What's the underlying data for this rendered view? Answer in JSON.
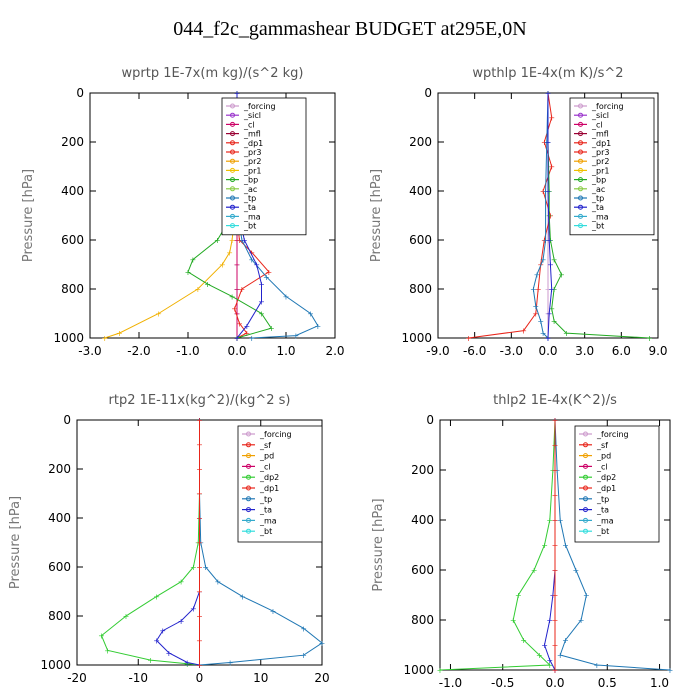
{
  "figure_title": "044_f2c_gammashear  BUDGET at295E,0N",
  "chart_data": [
    {
      "type": "line",
      "title": "wprtp  1E-7x(m kg)/(s^2 kg)",
      "ylabel": "Pressure [hPa]",
      "xlim": [
        -3.0,
        2.0
      ],
      "ylim": [
        1000,
        0
      ],
      "xticks": [
        "-3.0",
        "-2.0",
        "-1.0",
        "0.0",
        "1.0",
        "2.0"
      ],
      "yticks": [
        "0",
        "200",
        "400",
        "600",
        "800",
        "1000"
      ],
      "legend": [
        "_forcing",
        "_sicl",
        "_cl",
        "_mfl",
        "_dp1",
        "_pr3",
        "_pr2",
        "_pr1",
        "_bp",
        "_ac",
        "_tp",
        "_ta",
        "_ma",
        "_bt"
      ],
      "series": [
        {
          "name": "_forcing",
          "color": "#000000",
          "x": [
            0,
            0,
            0,
            0,
            0,
            0,
            0,
            0,
            0,
            0,
            0
          ],
          "y": [
            0,
            100,
            200,
            300,
            400,
            500,
            600,
            700,
            800,
            900,
            1000
          ]
        },
        {
          "name": "_cl",
          "color": "#cc0066",
          "x": [
            0,
            0,
            0,
            0,
            0,
            0,
            0,
            0,
            0,
            0,
            0
          ],
          "y": [
            0,
            100,
            200,
            300,
            400,
            500,
            600,
            700,
            800,
            900,
            1000
          ]
        },
        {
          "name": "_dp1",
          "color": "#e8251a",
          "x": [
            0,
            0,
            0,
            0,
            0,
            0,
            0.05,
            0.3,
            0.65,
            0.1,
            -0.05,
            0.05,
            0.2,
            0
          ],
          "y": [
            0,
            100,
            200,
            300,
            400,
            500,
            600,
            650,
            730,
            800,
            880,
            940,
            980,
            1000
          ]
        },
        {
          "name": "_pr1",
          "color": "#f0b000",
          "x": [
            0,
            0,
            0,
            -0.05,
            -0.1,
            -0.15,
            -0.3,
            -0.8,
            -1.6,
            -2.4,
            -2.7
          ],
          "y": [
            0,
            200,
            400,
            500,
            600,
            650,
            700,
            800,
            900,
            980,
            1000
          ]
        },
        {
          "name": "_bp",
          "color": "#22aa22",
          "x": [
            0,
            0,
            0,
            -0.1,
            -0.4,
            -0.9,
            -1.0,
            -0.6,
            -0.1,
            0.5,
            0.7,
            0
          ],
          "y": [
            0,
            200,
            400,
            500,
            600,
            680,
            730,
            780,
            830,
            900,
            960,
            1000
          ]
        },
        {
          "name": "_tp",
          "color": "#1f77b4",
          "x": [
            0,
            0,
            0,
            0.02,
            0.1,
            0.3,
            0.6,
            1.0,
            1.5,
            1.65,
            1.2,
            0.3
          ],
          "y": [
            0,
            200,
            400,
            500,
            600,
            680,
            750,
            830,
            900,
            950,
            990,
            1000
          ]
        },
        {
          "name": "_ta",
          "color": "#2222cc",
          "x": [
            0,
            0,
            0,
            0.05,
            0.15,
            0.4,
            0.5,
            0.5,
            0.2,
            0
          ],
          "y": [
            0,
            200,
            400,
            500,
            600,
            700,
            780,
            850,
            950,
            1000
          ]
        }
      ]
    },
    {
      "type": "line",
      "title": "wpthlp  1E-4x(m K)/s^2",
      "ylabel": "Pressure [hPa]",
      "xlim": [
        -9.0,
        9.0
      ],
      "ylim": [
        1000,
        0
      ],
      "xticks": [
        "-9.0",
        "-6.0",
        "-3.0",
        "0.0",
        "3.0",
        "6.0",
        "9.0"
      ],
      "yticks": [
        "0",
        "200",
        "400",
        "600",
        "800",
        "1000"
      ],
      "legend": [
        "_forcing",
        "_sicl",
        "_cl",
        "_mfl",
        "_dp1",
        "_pr3",
        "_pr2",
        "_pr1",
        "_bp",
        "_ac",
        "_tp",
        "_ta",
        "_ma",
        "_bt"
      ],
      "series": [
        {
          "name": "_forcing",
          "color": "#cc99cc",
          "x": [
            0,
            0,
            0,
            0,
            0,
            0,
            0
          ],
          "y": [
            0,
            200,
            400,
            600,
            800,
            900,
            1000
          ]
        },
        {
          "name": "_dp1",
          "color": "#e8251a",
          "x": [
            0,
            0.3,
            -0.3,
            0.3,
            -0.4,
            0.2,
            -0.3,
            -0.6,
            -0.8,
            -1.0,
            -2.0,
            -6.5
          ],
          "y": [
            0,
            100,
            200,
            300,
            400,
            500,
            600,
            700,
            800,
            900,
            970,
            1000
          ]
        },
        {
          "name": "_bp",
          "color": "#22aa22",
          "x": [
            0,
            0,
            0.1,
            0.1,
            0.2,
            0.5,
            1.1,
            0.5,
            0.3,
            0.5,
            1.5,
            8.3
          ],
          "y": [
            0,
            200,
            400,
            500,
            600,
            680,
            740,
            800,
            880,
            930,
            980,
            1000
          ]
        },
        {
          "name": "_tp",
          "color": "#1f77b4",
          "x": [
            0,
            -0.1,
            -0.2,
            -0.2,
            -0.4,
            -0.9,
            -1.2,
            -1.0,
            -0.6,
            -0.4,
            0
          ],
          "y": [
            0,
            200,
            400,
            600,
            680,
            740,
            800,
            870,
            930,
            980,
            1000
          ]
        },
        {
          "name": "_ta",
          "color": "#2222cc",
          "x": [
            0,
            0,
            0,
            0.1,
            0.2,
            0.3,
            0.1,
            0
          ],
          "y": [
            0,
            200,
            400,
            600,
            700,
            800,
            900,
            1000
          ]
        }
      ]
    },
    {
      "type": "line",
      "title": "rtp2  1E-11x(kg^2)/(kg^2 s)",
      "ylabel": "Pressure [hPa]",
      "xlim": [
        -20,
        20
      ],
      "ylim": [
        1000,
        0
      ],
      "xticks": [
        "-20",
        "-10",
        "0",
        "10",
        "20"
      ],
      "yticks": [
        "0",
        "200",
        "400",
        "600",
        "800",
        "1000"
      ],
      "legend": [
        "_forcing",
        "_sf",
        "_pd",
        "_cl",
        "_dp2",
        "_dp1",
        "_tp",
        "_ta",
        "_ma",
        "_bt"
      ],
      "series": [
        {
          "name": "_dp1",
          "color": "#33cc33",
          "x": [
            0,
            0,
            -0.2,
            -1.0,
            -3.0,
            -7.0,
            -12.0,
            -16.0,
            -15.0,
            -8.0,
            -2.0,
            0
          ],
          "y": [
            0,
            300,
            500,
            600,
            660,
            720,
            800,
            880,
            940,
            980,
            995,
            1000
          ]
        },
        {
          "name": "_tp",
          "color": "#1f77b4",
          "x": [
            0,
            0,
            0.2,
            1.0,
            3.0,
            7.0,
            12.0,
            17.0,
            20.0,
            17.0,
            5.0,
            0
          ],
          "y": [
            0,
            300,
            500,
            600,
            660,
            720,
            780,
            850,
            910,
            960,
            990,
            1000
          ]
        },
        {
          "name": "_ta",
          "color": "#2222cc",
          "x": [
            0,
            0,
            0,
            -1.0,
            -3.0,
            -6.0,
            -7.0,
            -5.0,
            -2.0,
            0
          ],
          "y": [
            0,
            400,
            700,
            770,
            820,
            860,
            900,
            950,
            990,
            1000
          ]
        },
        {
          "name": "_forcing",
          "color": "#e8251a",
          "x": [
            0,
            0,
            0,
            0,
            0,
            0,
            0,
            0,
            0,
            0,
            0
          ],
          "y": [
            0,
            100,
            200,
            300,
            400,
            500,
            600,
            700,
            800,
            900,
            1000
          ]
        }
      ]
    },
    {
      "type": "line",
      "title": "thlp2  1E-4x(K^2)/s",
      "ylabel": "Pressure [hPa]",
      "xlim": [
        -1.1,
        1.1
      ],
      "ylim": [
        1000,
        0
      ],
      "xticks": [
        "-1.0",
        "-0.5",
        "0.0",
        "0.5",
        "1.0"
      ],
      "yticks": [
        "0",
        "200",
        "400",
        "600",
        "800",
        "1000"
      ],
      "legend": [
        "_forcing",
        "_sf",
        "_pd",
        "_cl",
        "_dp2",
        "_dp1",
        "_tp",
        "_ta",
        "_ma",
        "_bt"
      ],
      "series": [
        {
          "name": "_dp1",
          "color": "#33cc33",
          "x": [
            0,
            -0.02,
            -0.05,
            -0.1,
            -0.2,
            -0.35,
            -0.4,
            -0.3,
            -0.15,
            -0.05,
            -1.1
          ],
          "y": [
            0,
            200,
            400,
            500,
            600,
            700,
            800,
            880,
            940,
            980,
            1000
          ]
        },
        {
          "name": "_tp",
          "color": "#1f77b4",
          "x": [
            0,
            0.02,
            0.05,
            0.1,
            0.2,
            0.3,
            0.25,
            0.1,
            0.05,
            0.4,
            1.1
          ],
          "y": [
            0,
            200,
            400,
            500,
            600,
            700,
            800,
            880,
            940,
            980,
            1000
          ]
        },
        {
          "name": "_ta",
          "color": "#2222cc",
          "x": [
            0,
            0,
            0,
            -0.02,
            -0.05,
            -0.1,
            -0.05,
            0
          ],
          "y": [
            0,
            400,
            600,
            700,
            800,
            900,
            960,
            1000
          ]
        },
        {
          "name": "_forcing",
          "color": "#e8251a",
          "x": [
            0,
            0,
            0,
            0,
            0,
            0,
            0,
            0,
            0,
            0,
            0
          ],
          "y": [
            0,
            100,
            200,
            300,
            400,
            500,
            600,
            700,
            800,
            900,
            1000
          ]
        }
      ]
    }
  ]
}
